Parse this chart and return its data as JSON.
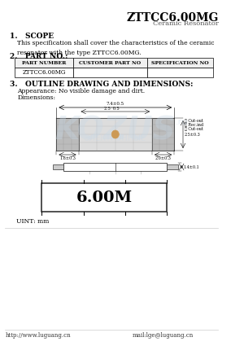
{
  "title": "ZTTCC6.00MG",
  "subtitle": "Ceramic Resonator",
  "bg_color": "#ffffff",
  "section1_title": "1.   SCOPE",
  "section1_text": "This specification shall cover the characteristics of the ceramic\nresonator with the type ZTTCC6.00MG.",
  "section2_title": "2.   PART NO.:",
  "table_headers": [
    "PART NUMBER",
    "CUSTOMER PART NO",
    "SPECIFICATION NO"
  ],
  "table_row": [
    "ZTTCC6.00MG",
    "",
    ""
  ],
  "section3_title": "3.   OUTLINE DRAWING AND DIMENSIONS:",
  "appearance_text": "Appearance: No visible damage and dirt.",
  "dimensions_text": "Dimensions:",
  "unit_text": "UINT: mm",
  "freq_label": "6.00M",
  "footer_left": "http://www.luguang.cn",
  "footer_right": "mail:lge@luguang.cn",
  "watermark_color": "#c8d8e8"
}
